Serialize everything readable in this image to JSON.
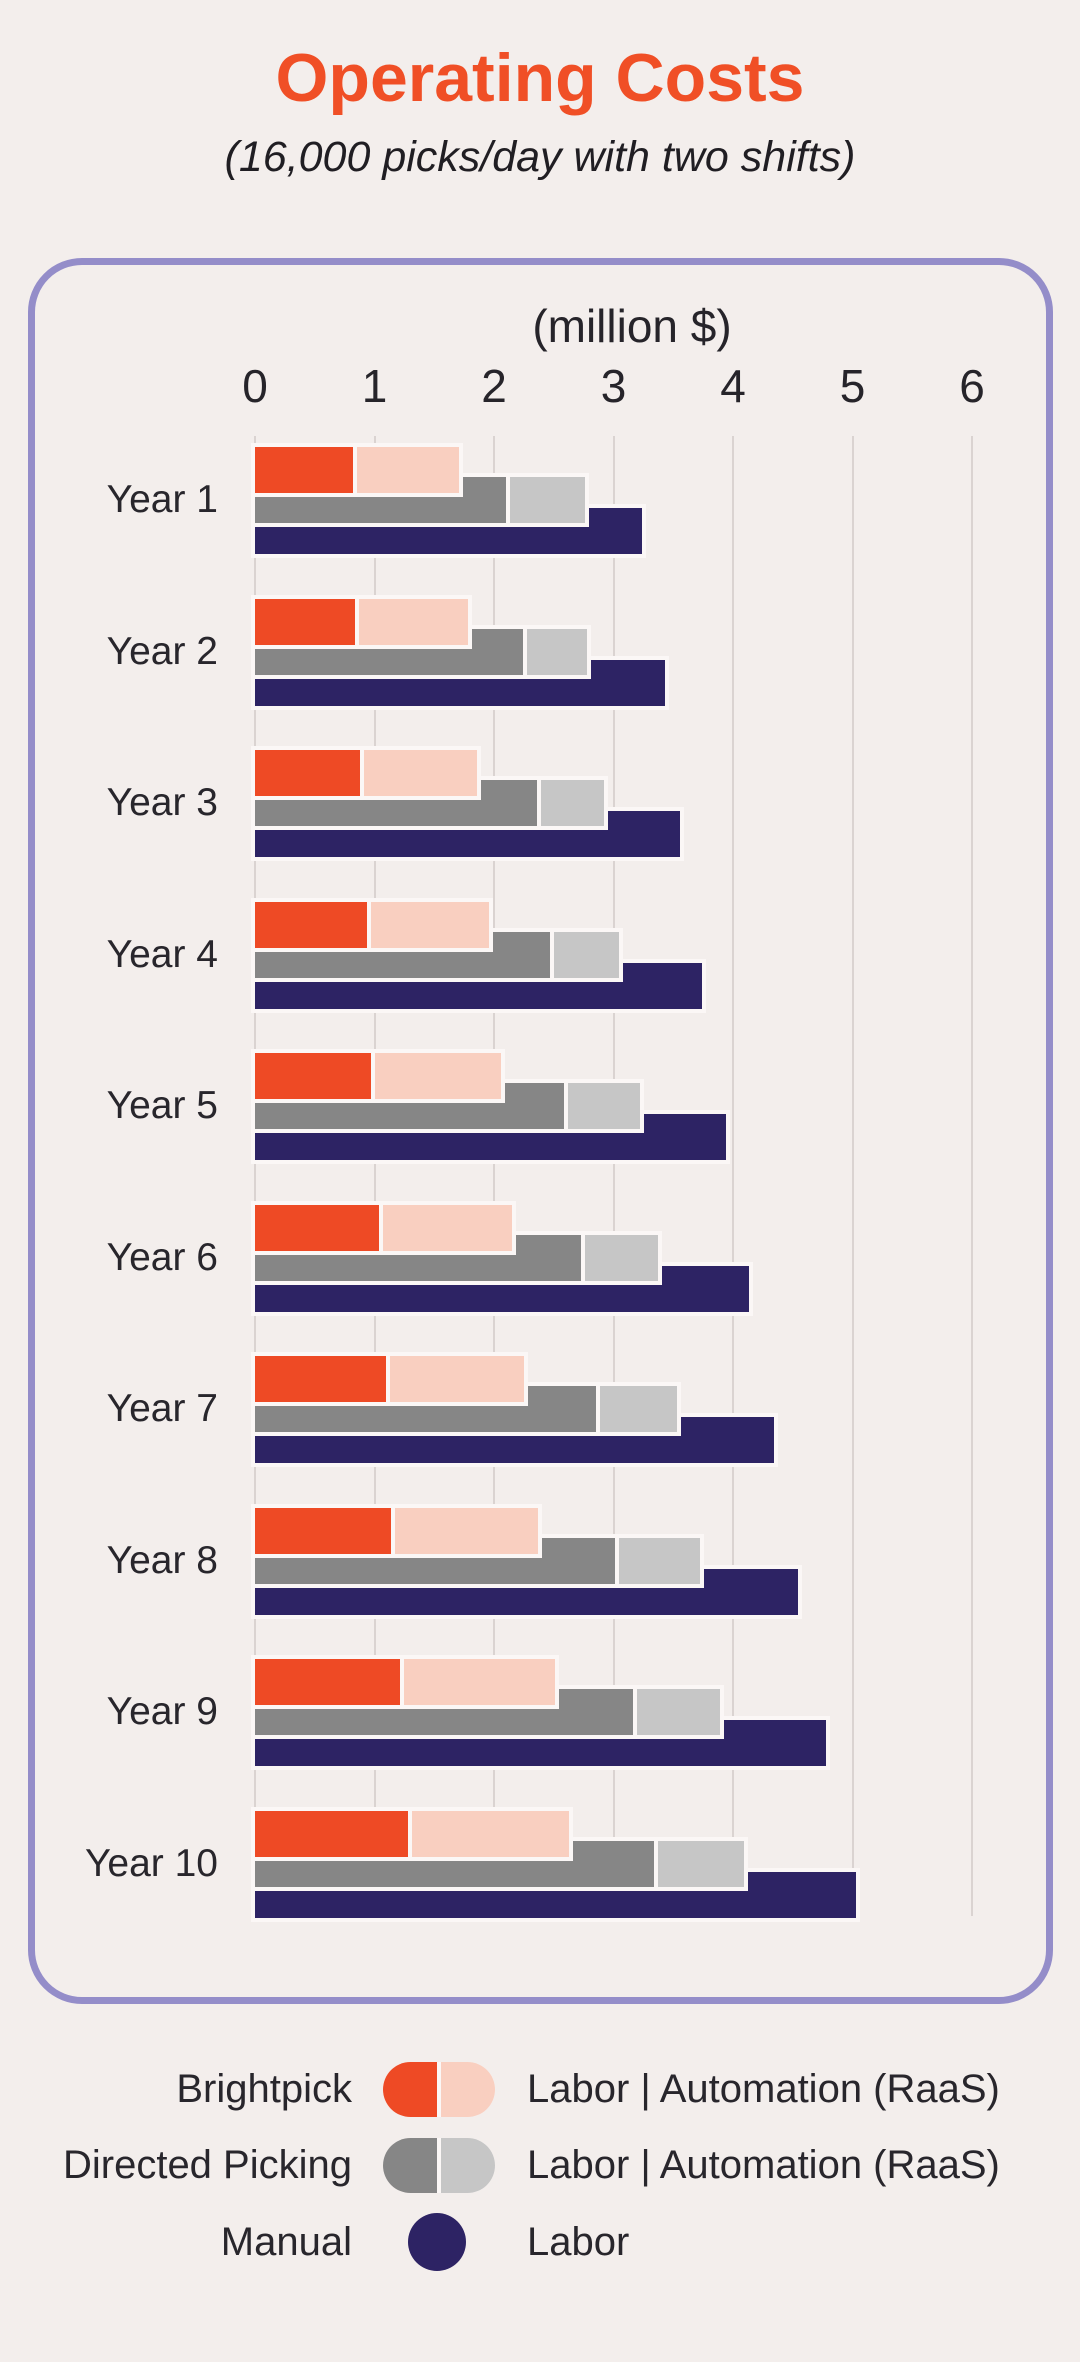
{
  "page": {
    "title": "Operating Costs",
    "subtitle": "(16,000 picks/day with two shifts)"
  },
  "chart_data": {
    "type": "bar",
    "orientation": "horizontal",
    "title": "Operating Costs",
    "subtitle": "(16,000 picks/day with two shifts)",
    "axis_title": "(million $)",
    "unit": "million $",
    "xlim": [
      0,
      6
    ],
    "x_ticks": [
      0,
      1,
      2,
      3,
      4,
      5,
      6
    ],
    "grid": true,
    "categories": [
      "Year 1",
      "Year 2",
      "Year 3",
      "Year 4",
      "Year 5",
      "Year 6",
      "Year 7",
      "Year 8",
      "Year 9",
      "Year 10"
    ],
    "series": [
      {
        "name": "Brightpick - Labor",
        "color": "#ee4a25",
        "values": [
          0.85,
          0.87,
          0.91,
          0.97,
          1.0,
          1.07,
          1.13,
          1.17,
          1.25,
          1.31
        ]
      },
      {
        "name": "Brightpick - Automation (RaaS)",
        "color": "#f9cfc0",
        "values": [
          0.86,
          0.91,
          0.95,
          0.99,
          1.06,
          1.08,
          1.12,
          1.2,
          1.26,
          1.32
        ]
      },
      {
        "name": "Directed Picking - Labor",
        "color": "#868686",
        "values": [
          2.13,
          2.28,
          2.39,
          2.5,
          2.62,
          2.76,
          2.89,
          3.05,
          3.2,
          3.37
        ]
      },
      {
        "name": "Directed Picking - Automation (RaaS)",
        "color": "#c6c6c6",
        "values": [
          0.63,
          0.5,
          0.53,
          0.55,
          0.6,
          0.61,
          0.64,
          0.67,
          0.69,
          0.72
        ]
      },
      {
        "name": "Manual - Labor",
        "color": "#2d2364",
        "values": [
          3.24,
          3.43,
          3.56,
          3.74,
          3.94,
          4.13,
          4.34,
          4.54,
          4.78,
          5.03
        ]
      }
    ],
    "legend_position": "bottom"
  },
  "legend": {
    "rows": [
      {
        "label": "Brightpick",
        "desc": "Labor | Automation (RaaS)",
        "icon": "pill-orange-salmon"
      },
      {
        "label": "Directed Picking",
        "desc": "Labor | Automation (RaaS)",
        "icon": "pill-darkgray-lightgray"
      },
      {
        "label": "Manual",
        "desc": "Labor",
        "icon": "circle-navy"
      }
    ]
  },
  "colors": {
    "background": "#f3eeec",
    "title": "#f04f26",
    "text": "#26242a",
    "card_border": "#948dc9",
    "gridline": "#dad3d1",
    "bar_outline": "#fbf7f6",
    "brightpick_labor": "#ee4a25",
    "brightpick_automation": "#f9cfc0",
    "directed_labor": "#868686",
    "directed_automation": "#c6c6c6",
    "manual_labor": "#2d2364"
  }
}
